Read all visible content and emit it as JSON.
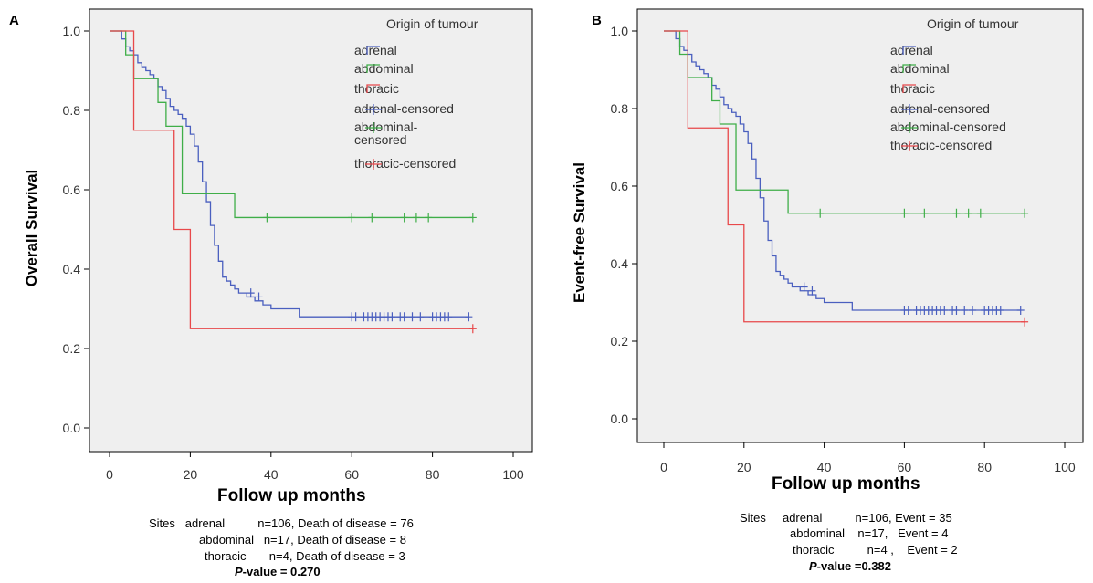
{
  "panels": [
    {
      "letter": "A",
      "ylabel": "Overall Survival",
      "xlabel": "Follow up months",
      "legend_title": "Origin of tumour",
      "legend": [
        "adrenal",
        "abdominal",
        "thoracic",
        "adrenal-censored",
        "abdominal-\ncensored",
        "thoracic-censored"
      ],
      "footer": {
        "line1": "Sites   adrenal          n=106, Death of disease = 76",
        "line2": "abdominal   n=17, Death of disease = 8",
        "line3": "thoracic       n=4, Death of disease = 3",
        "pvalue_label": "P",
        "pvalue_rest": "-value = 0.270"
      }
    },
    {
      "letter": "B",
      "ylabel": "Event-free Survival",
      "xlabel": "Follow up months",
      "legend_title": "Origin of tumour",
      "legend": [
        "adrenal",
        "abdominal",
        "thoracic",
        "adrenal-censored",
        "abdominal-censored",
        "thoracic-censored"
      ],
      "footer": {
        "line1": "Sites     adrenal          n=106, Event = 35",
        "line2": "abdominal    n=17,   Event = 4",
        "line3": "thoracic          n=4 ,    Event = 2",
        "pvalue_label": "P",
        "pvalue_rest": "-value =0.382"
      }
    }
  ],
  "colors": {
    "adrenal": "#4a5fbf",
    "abdominal": "#3fae48",
    "thoracic": "#e8484a",
    "plot_bg": "#efefef"
  },
  "chart_data": [
    {
      "type": "line",
      "title": "",
      "xlabel": "Follow up months",
      "ylabel": "Overall Survival",
      "xlim": [
        0,
        100
      ],
      "ylim": [
        0,
        1
      ],
      "xticks": [
        "0",
        "20",
        "40",
        "60",
        "80",
        "100"
      ],
      "yticks": [
        "0.0",
        "0.2",
        "0.4",
        "0.6",
        "0.8",
        "1.0"
      ],
      "grid": false,
      "legend_placement": "top-right",
      "series": [
        {
          "name": "adrenal",
          "color": "#4a5fbf",
          "x": [
            0,
            3,
            4,
            5,
            6,
            7,
            8,
            9,
            10,
            11,
            12,
            13,
            14,
            15,
            16,
            17,
            18,
            19,
            20,
            21,
            22,
            23,
            24,
            25,
            26,
            27,
            28,
            29,
            30,
            31,
            32,
            33,
            34,
            36,
            38,
            40,
            47,
            89
          ],
          "y": [
            1.0,
            0.98,
            0.96,
            0.95,
            0.94,
            0.92,
            0.91,
            0.9,
            0.89,
            0.88,
            0.86,
            0.85,
            0.83,
            0.81,
            0.8,
            0.79,
            0.78,
            0.76,
            0.74,
            0.71,
            0.67,
            0.62,
            0.57,
            0.51,
            0.46,
            0.42,
            0.38,
            0.37,
            0.36,
            0.35,
            0.34,
            0.34,
            0.33,
            0.32,
            0.31,
            0.3,
            0.28,
            0.28
          ]
        },
        {
          "name": "abdominal",
          "color": "#3fae48",
          "x": [
            0,
            4,
            6,
            12,
            14,
            18,
            31,
            90
          ],
          "y": [
            1.0,
            0.94,
            0.88,
            0.82,
            0.76,
            0.59,
            0.53,
            0.53
          ]
        },
        {
          "name": "thoracic",
          "color": "#e8484a",
          "x": [
            0,
            6,
            16,
            20,
            90
          ],
          "y": [
            1.0,
            0.75,
            0.5,
            0.25,
            0.25
          ]
        }
      ],
      "censored": [
        {
          "name": "adrenal-censored",
          "color": "#4a5fbf",
          "y": 0.28,
          "x": [
            60,
            61,
            63,
            64,
            65,
            66,
            67,
            68,
            69,
            70,
            72,
            73,
            75,
            77,
            80,
            81,
            82,
            83,
            84,
            89
          ],
          "extra": [
            [
              35,
              0.34
            ],
            [
              37,
              0.33
            ]
          ]
        },
        {
          "name": "abdominal-censored",
          "color": "#3fae48",
          "y": 0.53,
          "x": [
            39,
            60,
            65,
            73,
            76,
            79,
            90
          ]
        },
        {
          "name": "thoracic-censored",
          "color": "#e8484a",
          "y": 0.25,
          "x": [
            90
          ]
        }
      ]
    },
    {
      "type": "line",
      "title": "",
      "xlabel": "Follow up months",
      "ylabel": "Event-free Survival",
      "xlim": [
        0,
        100
      ],
      "ylim": [
        0,
        1
      ],
      "xticks": [
        "0",
        "20",
        "40",
        "60",
        "80",
        "100"
      ],
      "yticks": [
        "0.0",
        "0.2",
        "0.4",
        "0.6",
        "0.8",
        "1.0"
      ],
      "grid": false,
      "legend_placement": "top-right",
      "series": [
        {
          "name": "adrenal",
          "color": "#4a5fbf",
          "x": [
            0,
            3,
            4,
            5,
            6,
            7,
            8,
            9,
            10,
            11,
            12,
            13,
            14,
            15,
            16,
            17,
            18,
            19,
            20,
            21,
            22,
            23,
            24,
            25,
            26,
            27,
            28,
            29,
            30,
            31,
            32,
            33,
            34,
            36,
            38,
            40,
            47,
            89
          ],
          "y": [
            1.0,
            0.98,
            0.96,
            0.95,
            0.94,
            0.92,
            0.91,
            0.9,
            0.89,
            0.88,
            0.86,
            0.85,
            0.83,
            0.81,
            0.8,
            0.79,
            0.78,
            0.76,
            0.74,
            0.71,
            0.67,
            0.62,
            0.57,
            0.51,
            0.46,
            0.42,
            0.38,
            0.37,
            0.36,
            0.35,
            0.34,
            0.34,
            0.33,
            0.32,
            0.31,
            0.3,
            0.28,
            0.28
          ]
        },
        {
          "name": "abdominal",
          "color": "#3fae48",
          "x": [
            0,
            4,
            6,
            12,
            14,
            18,
            31,
            90
          ],
          "y": [
            1.0,
            0.94,
            0.88,
            0.82,
            0.76,
            0.59,
            0.53,
            0.53
          ]
        },
        {
          "name": "thoracic",
          "color": "#e8484a",
          "x": [
            0,
            6,
            16,
            20,
            90
          ],
          "y": [
            1.0,
            0.75,
            0.5,
            0.25,
            0.25
          ]
        }
      ],
      "censored": [
        {
          "name": "adrenal-censored",
          "color": "#4a5fbf",
          "y": 0.28,
          "x": [
            60,
            61,
            63,
            64,
            65,
            66,
            67,
            68,
            69,
            70,
            72,
            73,
            75,
            77,
            80,
            81,
            82,
            83,
            84,
            89
          ],
          "extra": [
            [
              35,
              0.34
            ],
            [
              37,
              0.33
            ]
          ]
        },
        {
          "name": "abdominal-censored",
          "color": "#3fae48",
          "y": 0.53,
          "x": [
            39,
            60,
            65,
            73,
            76,
            79,
            90
          ]
        },
        {
          "name": "thoracic-censored",
          "color": "#e8484a",
          "y": 0.25,
          "x": [
            90
          ]
        }
      ]
    }
  ]
}
